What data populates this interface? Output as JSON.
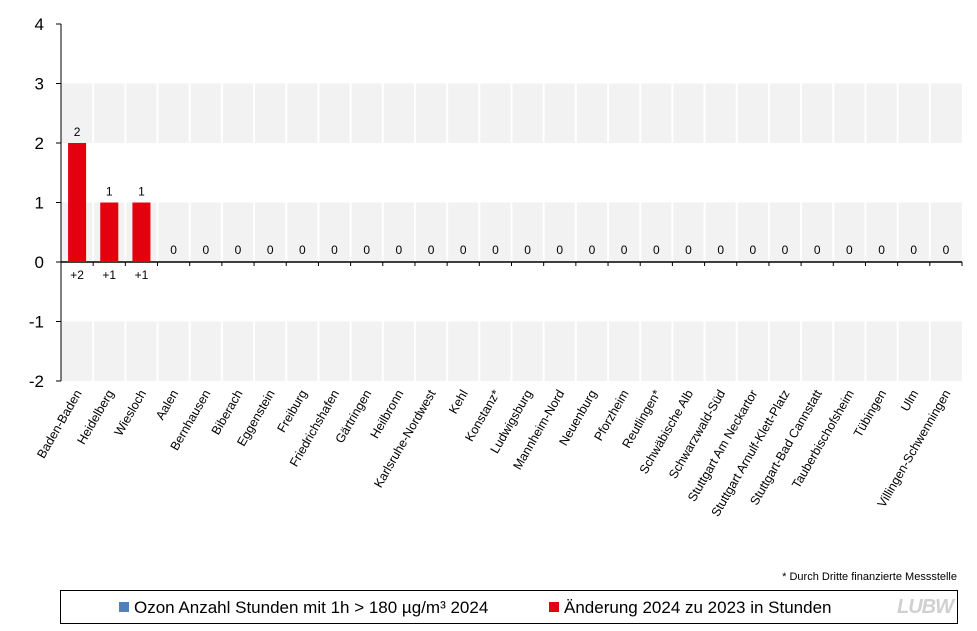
{
  "chart_data": {
    "type": "bar",
    "categories": [
      "Baden-Baden",
      "Heidelberg",
      "Wiesloch",
      "Aalen",
      "Bernhausen",
      "Biberach",
      "Eggenstein",
      "Freiburg",
      "Friedrichshafen",
      "Gärtringen",
      "Heilbronn",
      "Karlsruhe-Nordwest",
      "Kehl",
      "Konstanz*",
      "Ludwigsburg",
      "Mannheim-Nord",
      "Neuenburg",
      "Pforzheim",
      "Reutlingen*",
      "Schwäbische Alb",
      "Schwarzwald-Süd",
      "Stuttgart Am Neckartor",
      "Stuttgart Arnulf-Klett-Platz",
      "Stuttgart-Bad Cannstatt",
      "Tauberbischofsheim",
      "Tübingen",
      "Ulm",
      "Villingen-Schwenningen"
    ],
    "series": [
      {
        "name": "Ozon Anzahl Stunden mit 1h > 180 µg/m³ 2024",
        "color": "#4f81bd",
        "values": [
          2,
          1,
          1,
          0,
          0,
          0,
          0,
          0,
          0,
          0,
          0,
          0,
          0,
          0,
          0,
          0,
          0,
          0,
          0,
          0,
          0,
          0,
          0,
          0,
          0,
          0,
          0,
          0
        ]
      },
      {
        "name": "Änderung 2024 zu 2023 in Stunden",
        "color": "#e3000f",
        "values": [
          2,
          1,
          1,
          0,
          0,
          0,
          0,
          0,
          0,
          0,
          0,
          0,
          0,
          0,
          0,
          0,
          0,
          0,
          0,
          0,
          0,
          0,
          0,
          0,
          0,
          0,
          0,
          0
        ]
      }
    ],
    "value_labels": [
      "2",
      "1",
      "1",
      "0",
      "0",
      "0",
      "0",
      "0",
      "0",
      "0",
      "0",
      "0",
      "0",
      "0",
      "0",
      "0",
      "0",
      "0",
      "0",
      "0",
      "0",
      "0",
      "0",
      "0",
      "0",
      "0",
      "0",
      "0"
    ],
    "change_labels": [
      "+2",
      "+1",
      "+1",
      "",
      "",
      "",
      "",
      "",
      "",
      "",
      "",
      "",
      "",
      "",
      "",
      "",
      "",
      "",
      "",
      "",
      "",
      "",
      "",
      "",
      "",
      "",
      "",
      ""
    ],
    "ylim": [
      -2,
      4
    ],
    "yticks": [
      "4",
      "3",
      "2",
      "1",
      "0",
      "-1",
      "-2"
    ],
    "grid": "alternating horizontal bands",
    "legend_position": "bottom",
    "band_color": "#f2f2f2"
  },
  "footnote": "* Durch Dritte finanzierte Messstelle",
  "legend": {
    "item1": "Ozon Anzahl Stunden mit 1h > 180 µg/m³ 2024",
    "item2": "Änderung 2024 zu 2023 in Stunden",
    "color1": "#4f81bd",
    "color2": "#e3000f"
  },
  "logo": "LUBW"
}
